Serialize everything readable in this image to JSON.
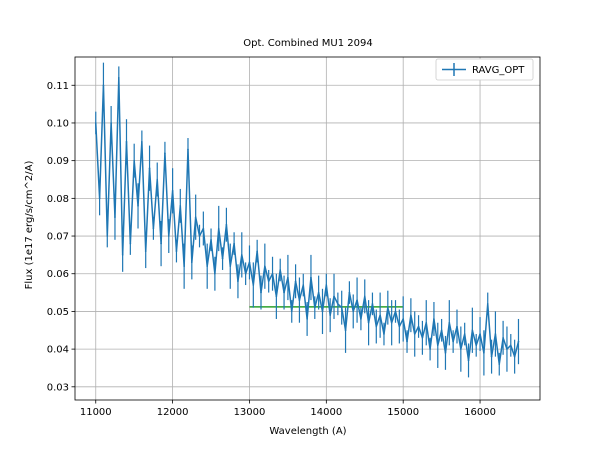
{
  "colors": {
    "series": "#1f77b4",
    "reference": "#2ca02c",
    "grid": "#b0b0b0",
    "axes": "#000000",
    "background": "#ffffff"
  },
  "chart_data": {
    "type": "line",
    "title": "Opt. Combined MU1 2094",
    "xlabel": "Wavelength (A)",
    "ylabel": "Flux (1e17 erg/s/cm^2/A)",
    "xlim": [
      10730,
      16780
    ],
    "ylim": [
      0.0265,
      0.1175
    ],
    "xticks": [
      11000,
      12000,
      13000,
      14000,
      15000,
      16000
    ],
    "xtick_labels": [
      "11000",
      "12000",
      "13000",
      "14000",
      "15000",
      "16000"
    ],
    "yticks": [
      0.03,
      0.04,
      0.05,
      0.06,
      0.07,
      0.08,
      0.09,
      0.1,
      0.11
    ],
    "ytick_labels": [
      "0.03",
      "0.04",
      "0.05",
      "0.06",
      "0.07",
      "0.08",
      "0.09",
      "0.10",
      "0.11"
    ],
    "grid": true,
    "legend": {
      "position": "top-right",
      "entries": [
        "RAVG_OPT"
      ]
    },
    "series": [
      {
        "name": "RAVG_OPT",
        "style": "line with errorbars",
        "x": [
          11000,
          11050,
          11100,
          11150,
          11200,
          11250,
          11300,
          11350,
          11400,
          11450,
          11500,
          11550,
          11600,
          11650,
          11700,
          11750,
          11800,
          11850,
          11900,
          11950,
          12000,
          12050,
          12100,
          12150,
          12200,
          12250,
          12300,
          12350,
          12400,
          12450,
          12500,
          12550,
          12600,
          12650,
          12700,
          12750,
          12800,
          12850,
          12900,
          12950,
          13000,
          13050,
          13100,
          13150,
          13200,
          13250,
          13300,
          13350,
          13400,
          13450,
          13500,
          13550,
          13600,
          13650,
          13700,
          13750,
          13800,
          13850,
          13900,
          13950,
          14000,
          14050,
          14100,
          14150,
          14200,
          14250,
          14300,
          14350,
          14400,
          14450,
          14500,
          14550,
          14600,
          14650,
          14700,
          14750,
          14800,
          14850,
          14900,
          14950,
          15000,
          15050,
          15100,
          15150,
          15200,
          15250,
          15300,
          15350,
          15400,
          15450,
          15500,
          15550,
          15600,
          15650,
          15700,
          15750,
          15800,
          15850,
          15900,
          15950,
          16000,
          16050,
          16100,
          16150,
          16200,
          16250,
          16300,
          16350,
          16400,
          16450,
          16500
        ],
        "y": [
          0.1,
          0.08,
          0.11,
          0.07,
          0.1,
          0.075,
          0.112,
          0.065,
          0.095,
          0.068,
          0.09,
          0.078,
          0.095,
          0.066,
          0.088,
          0.072,
          0.085,
          0.068,
          0.092,
          0.07,
          0.082,
          0.066,
          0.078,
          0.062,
          0.093,
          0.063,
          0.075,
          0.07,
          0.072,
          0.062,
          0.069,
          0.06,
          0.072,
          0.064,
          0.073,
          0.062,
          0.068,
          0.058,
          0.065,
          0.06,
          0.063,
          0.057,
          0.066,
          0.055,
          0.062,
          0.058,
          0.06,
          0.054,
          0.061,
          0.055,
          0.059,
          0.05,
          0.058,
          0.053,
          0.057,
          0.048,
          0.059,
          0.051,
          0.055,
          0.05,
          0.057,
          0.049,
          0.054,
          0.052,
          0.051,
          0.045,
          0.055,
          0.05,
          0.053,
          0.048,
          0.054,
          0.047,
          0.052,
          0.046,
          0.049,
          0.044,
          0.051,
          0.047,
          0.05,
          0.046,
          0.048,
          0.042,
          0.049,
          0.044,
          0.046,
          0.043,
          0.047,
          0.04,
          0.048,
          0.041,
          0.045,
          0.039,
          0.047,
          0.042,
          0.046,
          0.04,
          0.044,
          0.037,
          0.045,
          0.041,
          0.044,
          0.039,
          0.052,
          0.038,
          0.044,
          0.036,
          0.043,
          0.04,
          0.041,
          0.038,
          0.042
        ]
      },
      {
        "style": "flat line",
        "x": [
          13000,
          15000
        ],
        "y": [
          0.0512,
          0.0512
        ]
      }
    ]
  }
}
